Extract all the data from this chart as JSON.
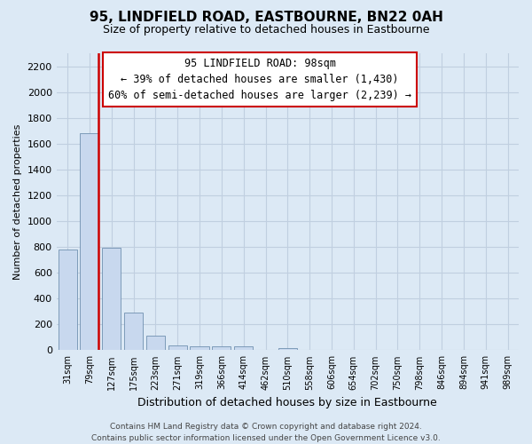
{
  "title": "95, LINDFIELD ROAD, EASTBOURNE, BN22 0AH",
  "subtitle": "Size of property relative to detached houses in Eastbourne",
  "xlabel": "Distribution of detached houses by size in Eastbourne",
  "ylabel": "Number of detached properties",
  "categories": [
    "31sqm",
    "79sqm",
    "127sqm",
    "175sqm",
    "223sqm",
    "271sqm",
    "319sqm",
    "366sqm",
    "414sqm",
    "462sqm",
    "510sqm",
    "558sqm",
    "606sqm",
    "654sqm",
    "702sqm",
    "750sqm",
    "798sqm",
    "846sqm",
    "894sqm",
    "941sqm",
    "989sqm"
  ],
  "values": [
    780,
    1680,
    795,
    295,
    110,
    35,
    30,
    30,
    30,
    0,
    20,
    0,
    0,
    0,
    0,
    0,
    0,
    0,
    0,
    0,
    0
  ],
  "bar_color": "#c8d8ee",
  "bar_edge_color": "#7090b0",
  "vline_color": "#cc0000",
  "vline_x": 1.42,
  "annotation_title": "95 LINDFIELD ROAD: 98sqm",
  "annotation_line1": "← 39% of detached houses are smaller (1,430)",
  "annotation_line2": "60% of semi-detached houses are larger (2,239) →",
  "annotation_box_facecolor": "#ffffff",
  "annotation_box_edgecolor": "#cc0000",
  "ylim": [
    0,
    2300
  ],
  "yticks": [
    0,
    200,
    400,
    600,
    800,
    1000,
    1200,
    1400,
    1600,
    1800,
    2000,
    2200
  ],
  "footer_line1": "Contains HM Land Registry data © Crown copyright and database right 2024.",
  "footer_line2": "Contains public sector information licensed under the Open Government Licence v3.0.",
  "grid_color": "#c0cfe0",
  "background_color": "#dce9f5",
  "title_fontsize": 11,
  "subtitle_fontsize": 9,
  "xlabel_fontsize": 9,
  "ylabel_fontsize": 8,
  "tick_fontsize": 8,
  "xtick_fontsize": 7,
  "footer_fontsize": 6.5,
  "ann_fontsize": 8.5
}
